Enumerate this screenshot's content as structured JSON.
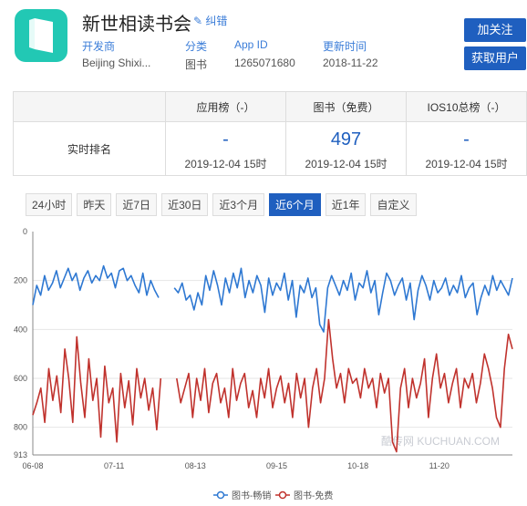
{
  "app": {
    "title": "新世相读书会",
    "fix_link": "纠错",
    "developer_label": "开发商",
    "developer_value": "Beijing Shixi...",
    "category_label": "分类",
    "category_value": "图书",
    "appid_label": "App ID",
    "appid_value": "1265071680",
    "update_label": "更新时间",
    "update_value": "2018-11-22"
  },
  "buttons": {
    "follow": "加关注",
    "get_users": "获取用户"
  },
  "rank_table": {
    "row_label": "实时排名",
    "columns": [
      {
        "header": "应用榜（-）",
        "value": "-",
        "date": "2019-12-04 15时"
      },
      {
        "header": "图书（免费）",
        "value": "497",
        "date": "2019-12-04 15时"
      },
      {
        "header": "IOS10总榜（-）",
        "value": "-",
        "date": "2019-12-04 15时"
      }
    ]
  },
  "tabs": [
    "24小时",
    "昨天",
    "近7日",
    "近30日",
    "近3个月",
    "近6个月",
    "近1年",
    "自定义"
  ],
  "active_tab": "近6个月",
  "watermark": "酷传网 KUCHUAN.COM",
  "colors": {
    "accent": "#1f5fbf",
    "paid": "#2e78d2",
    "free": "#c0322d"
  },
  "chart_data": {
    "type": "line",
    "y_inverted": true,
    "ylim": [
      0,
      913
    ],
    "y_ticks": [
      "0",
      "200",
      "400",
      "600",
      "800",
      "913"
    ],
    "x_ticks": [
      "06-08",
      "07-11",
      "08-13",
      "09-15",
      "10-18",
      "11-20"
    ],
    "series": [
      {
        "name": "图书-畅销",
        "values": [
          300,
          220,
          260,
          180,
          240,
          210,
          160,
          230,
          190,
          150,
          200,
          170,
          240,
          190,
          160,
          210,
          180,
          200,
          140,
          190,
          170,
          230,
          160,
          150,
          200,
          180,
          220,
          250,
          170,
          260,
          200,
          240,
          270,
          null,
          null,
          null,
          230,
          250,
          210,
          280,
          260,
          320,
          250,
          300,
          180,
          240,
          160,
          220,
          300,
          190,
          250,
          170,
          230,
          150,
          270,
          200,
          250,
          180,
          220,
          330,
          190,
          260,
          210,
          240,
          170,
          280,
          200,
          350,
          220,
          250,
          190,
          270,
          230,
          380,
          410,
          230,
          180,
          220,
          260,
          200,
          240,
          170,
          280,
          210,
          230,
          160,
          250,
          200,
          340,
          250,
          170,
          200,
          260,
          220,
          190,
          280,
          210,
          360,
          240,
          180,
          220,
          280,
          200,
          250,
          230,
          190,
          260,
          220,
          250,
          180,
          270,
          230,
          210,
          340,
          270,
          220,
          260,
          180,
          240,
          200,
          230,
          260,
          190
        ]
      },
      {
        "name": "图书-免费",
        "values": [
          750,
          700,
          640,
          780,
          560,
          690,
          590,
          740,
          480,
          600,
          780,
          430,
          620,
          760,
          520,
          690,
          600,
          840,
          550,
          700,
          640,
          860,
          580,
          720,
          610,
          790,
          560,
          680,
          600,
          730,
          640,
          810,
          600,
          null,
          null,
          null,
          600,
          700,
          640,
          580,
          760,
          600,
          690,
          560,
          740,
          620,
          580,
          700,
          640,
          760,
          560,
          690,
          620,
          580,
          720,
          650,
          760,
          600,
          680,
          560,
          720,
          640,
          590,
          700,
          620,
          760,
          580,
          680,
          600,
          800,
          640,
          560,
          700,
          600,
          360,
          520,
          640,
          580,
          700,
          560,
          620,
          600,
          680,
          560,
          640,
          600,
          720,
          580,
          660,
          600,
          860,
          900,
          640,
          560,
          720,
          600,
          680,
          620,
          520,
          760,
          600,
          500,
          640,
          580,
          700,
          620,
          560,
          720,
          600,
          640,
          580,
          700,
          620,
          500,
          560,
          640,
          760,
          800,
          560,
          420,
          480
        ]
      }
    ]
  }
}
